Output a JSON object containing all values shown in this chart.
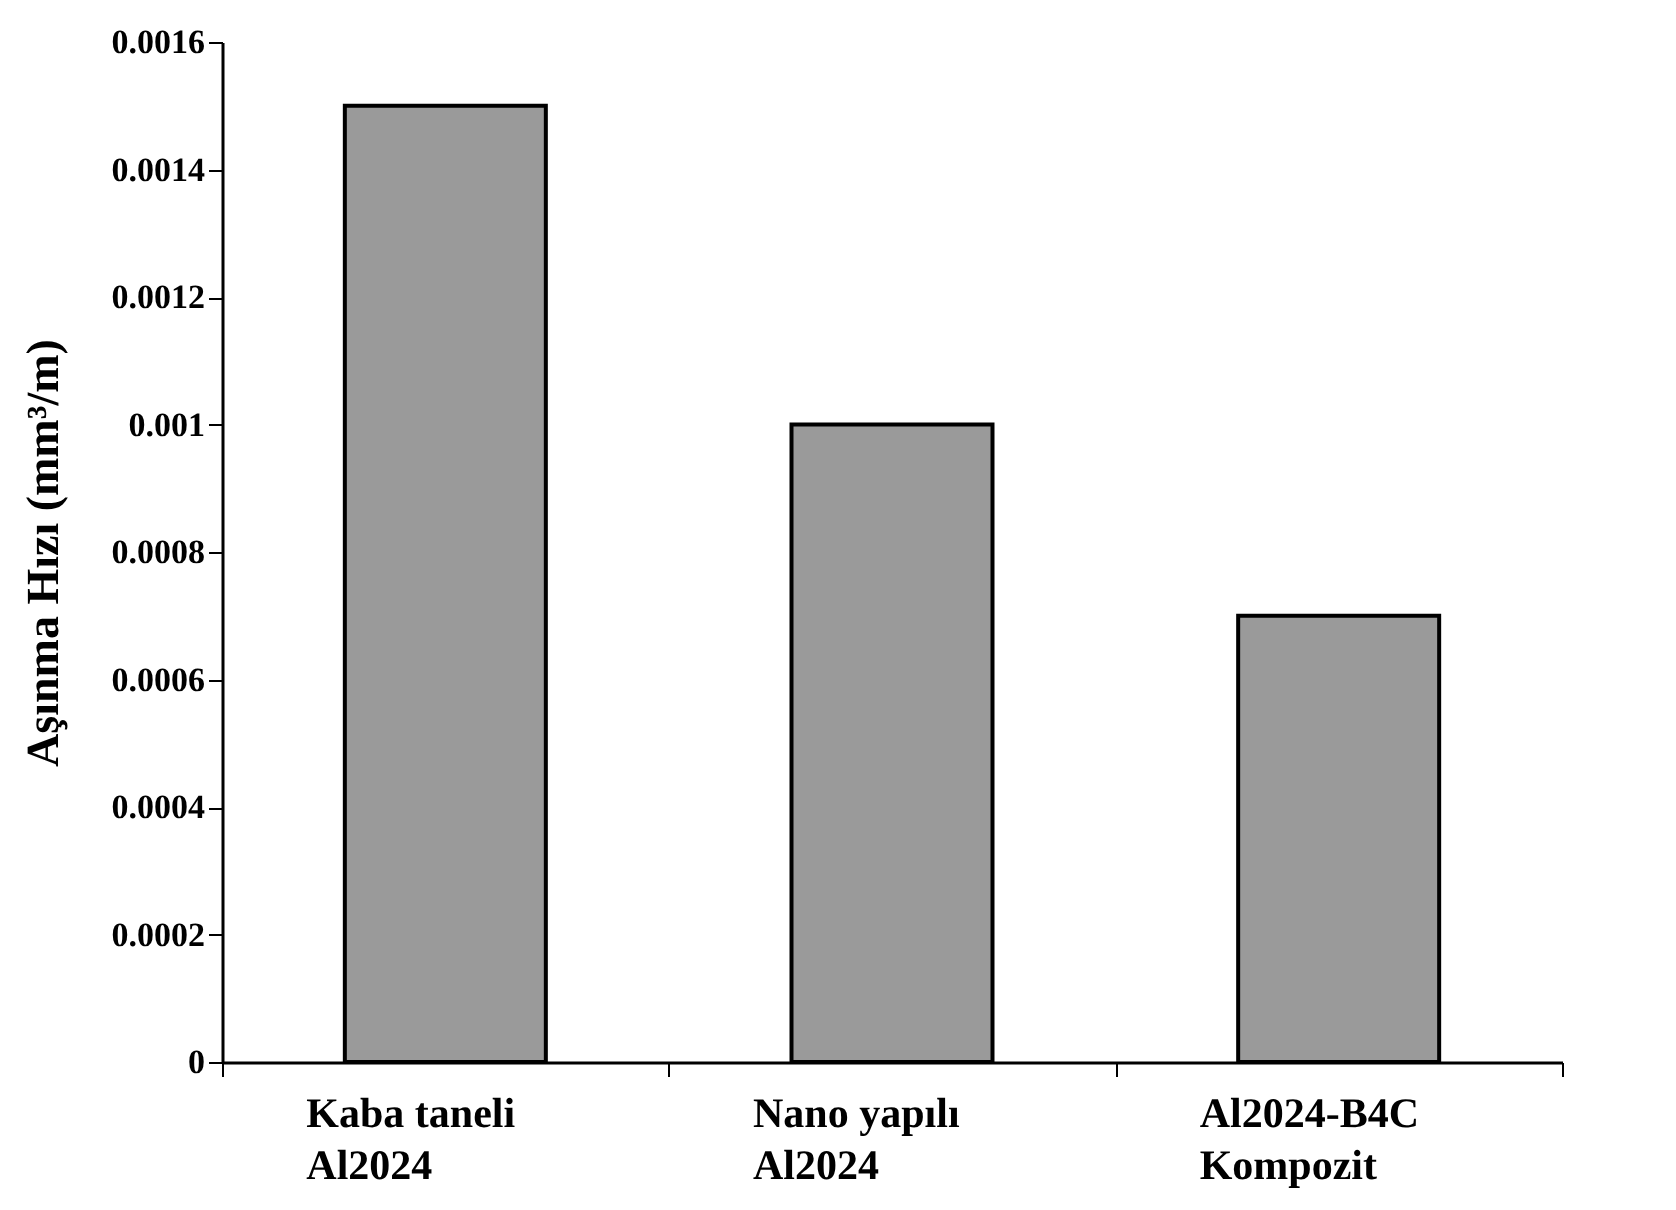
{
  "chart_data": {
    "type": "bar",
    "ylabel": "Aşınma Hızı (mm³/m)",
    "categories": [
      "Kaba taneli\nAl2024",
      "Nano yapılı\nAl2024",
      "Al2024-B4C\nKompozit"
    ],
    "values": [
      0.0015,
      0.001,
      0.0007
    ],
    "color": "#9a9a9a",
    "ylim": [
      0,
      0.0016
    ],
    "yticks": [
      0,
      0.0002,
      0.0004,
      0.0006,
      0.0008,
      0.001,
      0.0012,
      0.0014,
      0.0016
    ],
    "grid": false
  }
}
